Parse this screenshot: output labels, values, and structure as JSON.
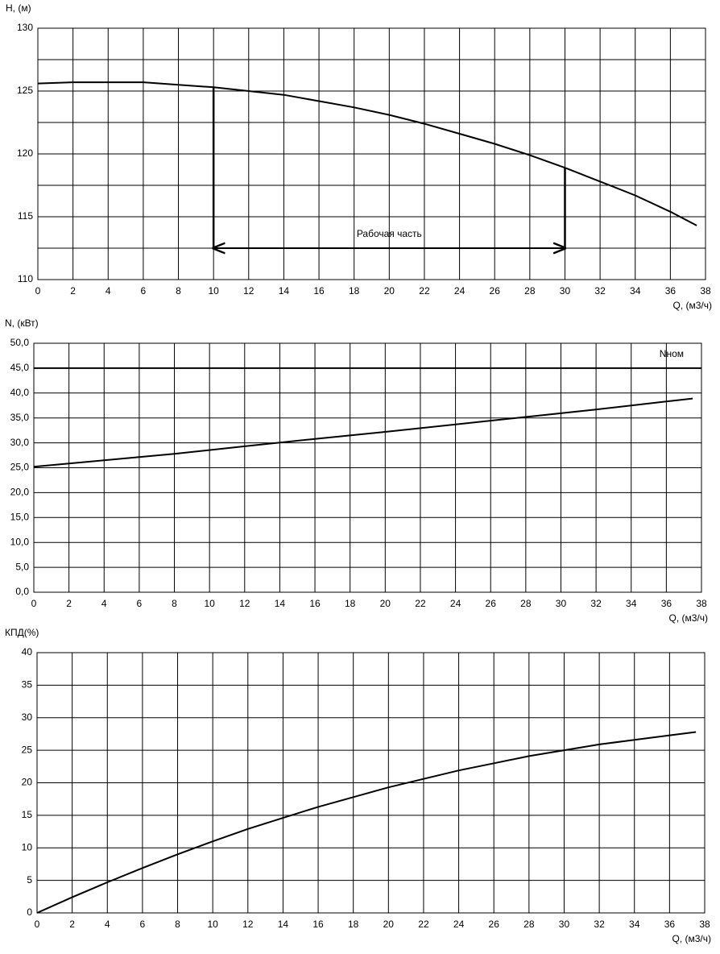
{
  "chart_data": [
    {
      "type": "line",
      "ylabel": "H, (м)",
      "xlabel": "Q, (м3/ч)",
      "x": [
        0,
        2,
        4,
        6,
        8,
        10,
        12,
        14,
        16,
        18,
        20,
        22,
        24,
        26,
        28,
        30,
        32,
        34,
        36,
        37.5
      ],
      "values": [
        125.6,
        125.7,
        125.7,
        125.7,
        125.5,
        125.3,
        125.0,
        124.7,
        124.2,
        123.7,
        123.1,
        122.4,
        121.6,
        120.8,
        119.9,
        118.9,
        117.8,
        116.7,
        115.4,
        114.3
      ],
      "color": "#000000",
      "xlim": [
        0,
        38
      ],
      "xticks": [
        0,
        2,
        4,
        6,
        8,
        10,
        12,
        14,
        16,
        18,
        20,
        22,
        24,
        26,
        28,
        30,
        32,
        34,
        36,
        38
      ],
      "ylim": [
        110,
        130
      ],
      "yticks": [
        110,
        115,
        120,
        125,
        130
      ],
      "ygrid": [
        110,
        112.5,
        115,
        117.5,
        120,
        122.5,
        125,
        127.5,
        130
      ],
      "grid": true,
      "annotation": {
        "label": "Рабочая часть",
        "x": [
          10,
          30
        ],
        "y": 112.5
      }
    },
    {
      "type": "line",
      "ylabel": "N, (кВт)",
      "xlabel": "Q, (м3/ч)",
      "x": [
        0,
        4,
        8,
        12,
        16,
        20,
        24,
        28,
        32,
        36,
        37.5
      ],
      "values": [
        25.2,
        26.5,
        27.8,
        29.3,
        30.8,
        32.2,
        33.7,
        35.2,
        36.7,
        38.3,
        38.9
      ],
      "color": "#000000",
      "xlim": [
        0,
        38
      ],
      "xticks": [
        0,
        2,
        4,
        6,
        8,
        10,
        12,
        14,
        16,
        18,
        20,
        22,
        24,
        26,
        28,
        30,
        32,
        34,
        36,
        38
      ],
      "ylim": [
        0,
        50
      ],
      "yticks": [
        {
          "value": 0,
          "label": "0,0"
        },
        {
          "value": 5,
          "label": "5,0"
        },
        {
          "value": 10,
          "label": "10,0"
        },
        {
          "value": 15,
          "label": "15,0"
        },
        {
          "value": 20,
          "label": "20,0"
        },
        {
          "value": 25,
          "label": "25,0"
        },
        {
          "value": 30,
          "label": "30,0"
        },
        {
          "value": 35,
          "label": "35,0"
        },
        {
          "value": 40,
          "label": "40,0"
        },
        {
          "value": 45,
          "label": "45,0"
        },
        {
          "value": 50,
          "label": "50,0"
        }
      ],
      "grid": true,
      "reference_line": {
        "value": 45,
        "label": "Nном"
      }
    },
    {
      "type": "line",
      "ylabel": "КПД(%)",
      "xlabel": "Q, (м3/ч)",
      "x": [
        0,
        2,
        4,
        6,
        8,
        10,
        12,
        14,
        16,
        18,
        20,
        22,
        24,
        26,
        28,
        30,
        32,
        34,
        36,
        37.5
      ],
      "values": [
        0,
        2.4,
        4.7,
        6.9,
        9.0,
        11.0,
        12.9,
        14.6,
        16.3,
        17.8,
        19.3,
        20.6,
        21.9,
        23.0,
        24.1,
        25.0,
        25.9,
        26.6,
        27.3,
        27.8
      ],
      "color": "#000000",
      "xlim": [
        0,
        38
      ],
      "xticks": [
        0,
        2,
        4,
        6,
        8,
        10,
        12,
        14,
        16,
        18,
        20,
        22,
        24,
        26,
        28,
        30,
        32,
        34,
        36,
        38
      ],
      "ylim": [
        0,
        40
      ],
      "yticks": [
        0,
        5,
        10,
        15,
        20,
        25,
        30,
        35,
        40
      ],
      "grid": true
    }
  ]
}
